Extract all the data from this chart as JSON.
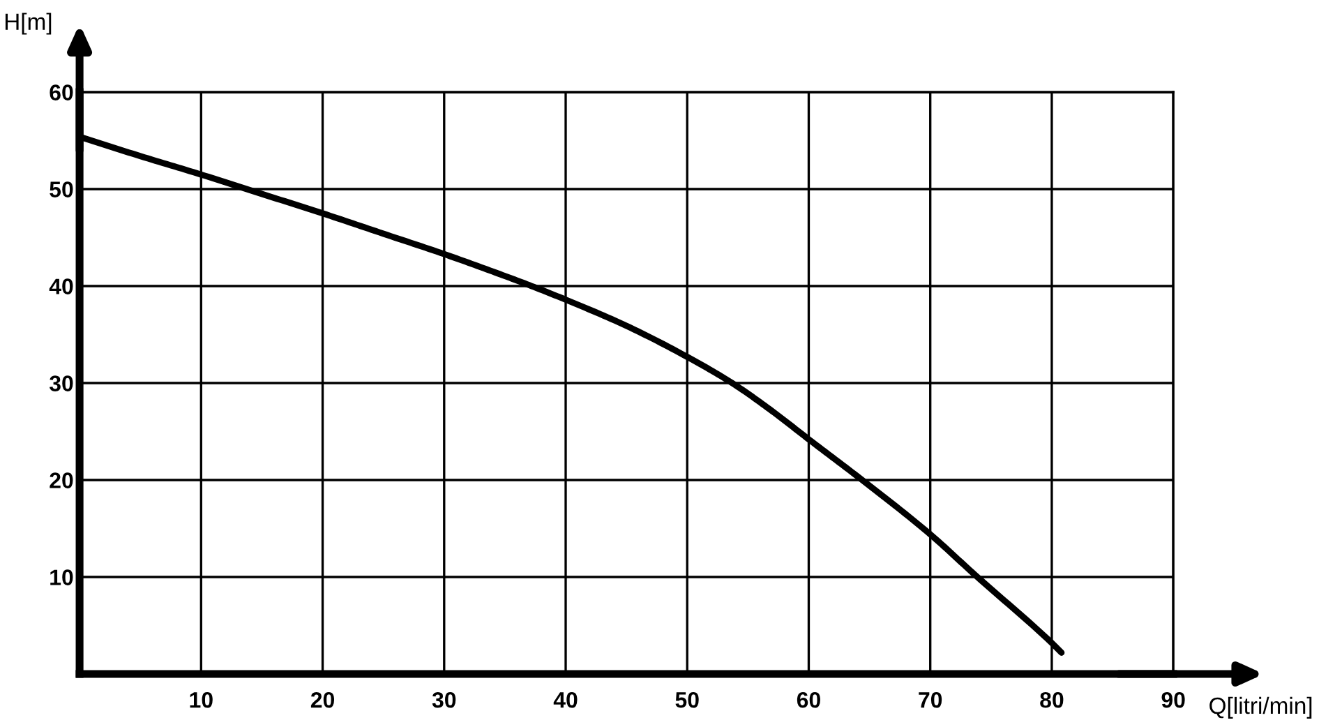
{
  "chart_data": {
    "type": "line",
    "xlabel": "Q[litri/min]",
    "ylabel": "H[m]",
    "x": [
      0,
      5,
      10,
      15,
      20,
      25,
      30,
      34,
      37.2,
      40,
      45,
      50,
      53.7,
      57,
      60,
      64.4,
      70,
      73.7,
      80,
      80.8
    ],
    "series": [
      {
        "color": "#000000",
        "values": [
          55.4,
          53.4,
          51.5,
          49.5,
          47.5,
          45.4,
          43.3,
          41.5,
          40,
          38.6,
          35.9,
          32.7,
          30,
          27.1,
          24.2,
          20,
          14.4,
          10.2,
          3.2,
          2.2
        ]
      }
    ],
    "xlim": [
      0,
      90
    ],
    "ylim": [
      0,
      60
    ],
    "xticks": [
      10,
      20,
      30,
      40,
      50,
      60,
      70,
      80,
      90
    ],
    "yticks": [
      10,
      20,
      30,
      40,
      50,
      60
    ],
    "grid": true,
    "line_style": "solid"
  }
}
